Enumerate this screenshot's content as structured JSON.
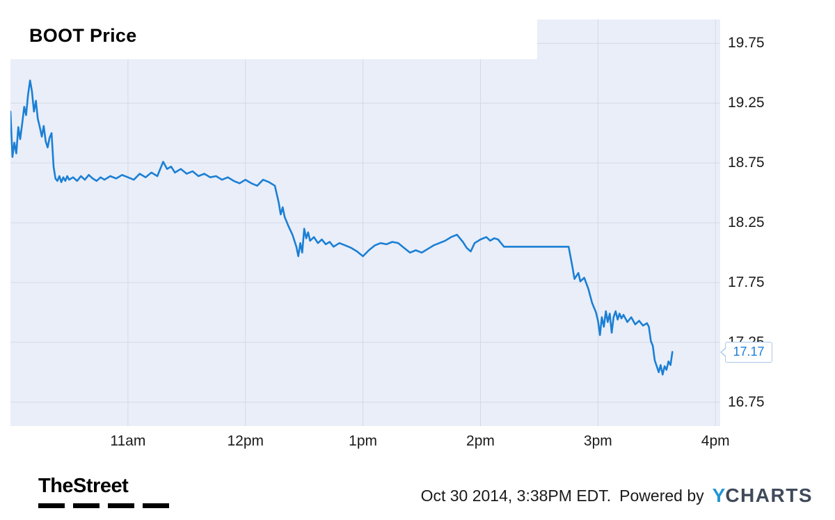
{
  "chart": {
    "title": "BOOT Price",
    "last_price_label": "17.17"
  },
  "footer": {
    "thestreet": "TheStreet",
    "timestamp": "Oct 30 2014, 3:38PM EDT.",
    "powered_by": "Powered by",
    "ycharts_y": "Y",
    "ycharts_rest": "CHARTS"
  },
  "chart_data": {
    "type": "line",
    "title": "BOOT Price",
    "line_color": "#1b7fd4",
    "plot_bg": "#e9eef9",
    "grid_color": "#d4d9e6",
    "grid": true,
    "last_price": 17.17,
    "timestamp": "Oct 30 2014, 3:38PM EDT.",
    "ylim": [
      16.55,
      19.95
    ],
    "x_range_hours": [
      10.0,
      16.04
    ],
    "y_ticks": [
      19.75,
      19.25,
      18.75,
      18.25,
      17.75,
      17.25,
      16.75
    ],
    "x_ticks": [
      "11am",
      "12pm",
      "1pm",
      "2pm",
      "3pm",
      "4pm"
    ],
    "x_tick_hours": [
      11,
      12,
      13,
      14,
      15,
      16
    ],
    "x_unit": "local time (hours)",
    "points": [
      [
        10.0,
        19.18
      ],
      [
        10.017,
        18.8
      ],
      [
        10.033,
        18.92
      ],
      [
        10.05,
        18.83
      ],
      [
        10.067,
        19.05
      ],
      [
        10.083,
        18.95
      ],
      [
        10.1,
        19.08
      ],
      [
        10.117,
        19.22
      ],
      [
        10.133,
        19.15
      ],
      [
        10.15,
        19.32
      ],
      [
        10.167,
        19.44
      ],
      [
        10.183,
        19.35
      ],
      [
        10.2,
        19.18
      ],
      [
        10.217,
        19.27
      ],
      [
        10.233,
        19.12
      ],
      [
        10.25,
        19.05
      ],
      [
        10.267,
        18.97
      ],
      [
        10.283,
        19.06
      ],
      [
        10.3,
        18.93
      ],
      [
        10.317,
        18.88
      ],
      [
        10.333,
        18.96
      ],
      [
        10.35,
        19.0
      ],
      [
        10.367,
        18.72
      ],
      [
        10.383,
        18.62
      ],
      [
        10.4,
        18.6
      ],
      [
        10.417,
        18.64
      ],
      [
        10.433,
        18.59
      ],
      [
        10.45,
        18.63
      ],
      [
        10.467,
        18.6
      ],
      [
        10.483,
        18.64
      ],
      [
        10.5,
        18.61
      ],
      [
        10.533,
        18.63
      ],
      [
        10.567,
        18.6
      ],
      [
        10.6,
        18.64
      ],
      [
        10.633,
        18.61
      ],
      [
        10.667,
        18.65
      ],
      [
        10.7,
        18.62
      ],
      [
        10.733,
        18.6
      ],
      [
        10.767,
        18.63
      ],
      [
        10.8,
        18.61
      ],
      [
        10.85,
        18.64
      ],
      [
        10.9,
        18.62
      ],
      [
        10.95,
        18.65
      ],
      [
        11.0,
        18.63
      ],
      [
        11.05,
        18.61
      ],
      [
        11.1,
        18.66
      ],
      [
        11.15,
        18.63
      ],
      [
        11.2,
        18.67
      ],
      [
        11.25,
        18.64
      ],
      [
        11.3,
        18.76
      ],
      [
        11.333,
        18.7
      ],
      [
        11.367,
        18.72
      ],
      [
        11.4,
        18.67
      ],
      [
        11.45,
        18.7
      ],
      [
        11.5,
        18.66
      ],
      [
        11.55,
        18.68
      ],
      [
        11.6,
        18.64
      ],
      [
        11.65,
        18.66
      ],
      [
        11.7,
        18.63
      ],
      [
        11.75,
        18.64
      ],
      [
        11.8,
        18.61
      ],
      [
        11.85,
        18.63
      ],
      [
        11.9,
        18.6
      ],
      [
        11.95,
        18.58
      ],
      [
        12.0,
        18.61
      ],
      [
        12.05,
        18.58
      ],
      [
        12.1,
        18.56
      ],
      [
        12.15,
        18.61
      ],
      [
        12.2,
        18.59
      ],
      [
        12.25,
        18.56
      ],
      [
        12.283,
        18.42
      ],
      [
        12.3,
        18.32
      ],
      [
        12.317,
        18.38
      ],
      [
        12.333,
        18.3
      ],
      [
        12.367,
        18.22
      ],
      [
        12.4,
        18.15
      ],
      [
        12.433,
        18.05
      ],
      [
        12.45,
        17.97
      ],
      [
        12.467,
        18.08
      ],
      [
        12.483,
        18.0
      ],
      [
        12.5,
        18.2
      ],
      [
        12.517,
        18.12
      ],
      [
        12.533,
        18.17
      ],
      [
        12.55,
        18.1
      ],
      [
        12.583,
        18.13
      ],
      [
        12.617,
        18.08
      ],
      [
        12.65,
        18.11
      ],
      [
        12.683,
        18.07
      ],
      [
        12.717,
        18.09
      ],
      [
        12.75,
        18.05
      ],
      [
        12.8,
        18.08
      ],
      [
        12.85,
        18.06
      ],
      [
        12.9,
        18.04
      ],
      [
        12.95,
        18.01
      ],
      [
        13.0,
        17.97
      ],
      [
        13.05,
        18.02
      ],
      [
        13.1,
        18.06
      ],
      [
        13.15,
        18.08
      ],
      [
        13.2,
        18.07
      ],
      [
        13.25,
        18.09
      ],
      [
        13.3,
        18.08
      ],
      [
        13.35,
        18.04
      ],
      [
        13.4,
        18.0
      ],
      [
        13.45,
        18.02
      ],
      [
        13.5,
        18.0
      ],
      [
        13.55,
        18.03
      ],
      [
        13.6,
        18.06
      ],
      [
        13.65,
        18.08
      ],
      [
        13.7,
        18.1
      ],
      [
        13.75,
        18.13
      ],
      [
        13.8,
        18.15
      ],
      [
        13.85,
        18.09
      ],
      [
        13.883,
        18.04
      ],
      [
        13.917,
        18.01
      ],
      [
        13.95,
        18.08
      ],
      [
        14.0,
        18.11
      ],
      [
        14.05,
        18.13
      ],
      [
        14.083,
        18.1
      ],
      [
        14.117,
        18.12
      ],
      [
        14.15,
        18.11
      ],
      [
        14.2,
        18.05
      ],
      [
        14.3,
        18.05
      ],
      [
        14.4,
        18.05
      ],
      [
        14.5,
        18.05
      ],
      [
        14.6,
        18.05
      ],
      [
        14.7,
        18.05
      ],
      [
        14.75,
        18.05
      ],
      [
        14.783,
        17.88
      ],
      [
        14.8,
        17.78
      ],
      [
        14.833,
        17.83
      ],
      [
        14.85,
        17.76
      ],
      [
        14.883,
        17.79
      ],
      [
        14.917,
        17.7
      ],
      [
        14.95,
        17.58
      ],
      [
        14.983,
        17.5
      ],
      [
        15.0,
        17.43
      ],
      [
        15.017,
        17.31
      ],
      [
        15.033,
        17.46
      ],
      [
        15.05,
        17.38
      ],
      [
        15.067,
        17.51
      ],
      [
        15.083,
        17.42
      ],
      [
        15.1,
        17.49
      ],
      [
        15.117,
        17.33
      ],
      [
        15.133,
        17.46
      ],
      [
        15.15,
        17.51
      ],
      [
        15.167,
        17.44
      ],
      [
        15.183,
        17.49
      ],
      [
        15.2,
        17.45
      ],
      [
        15.217,
        17.48
      ],
      [
        15.25,
        17.42
      ],
      [
        15.283,
        17.46
      ],
      [
        15.317,
        17.4
      ],
      [
        15.35,
        17.43
      ],
      [
        15.383,
        17.39
      ],
      [
        15.417,
        17.41
      ],
      [
        15.433,
        17.38
      ],
      [
        15.45,
        17.26
      ],
      [
        15.467,
        17.22
      ],
      [
        15.483,
        17.1
      ],
      [
        15.5,
        17.05
      ],
      [
        15.517,
        17.0
      ],
      [
        15.533,
        17.06
      ],
      [
        15.55,
        16.98
      ],
      [
        15.567,
        17.05
      ],
      [
        15.583,
        17.02
      ],
      [
        15.6,
        17.09
      ],
      [
        15.617,
        17.06
      ],
      [
        15.633,
        17.17
      ]
    ]
  }
}
